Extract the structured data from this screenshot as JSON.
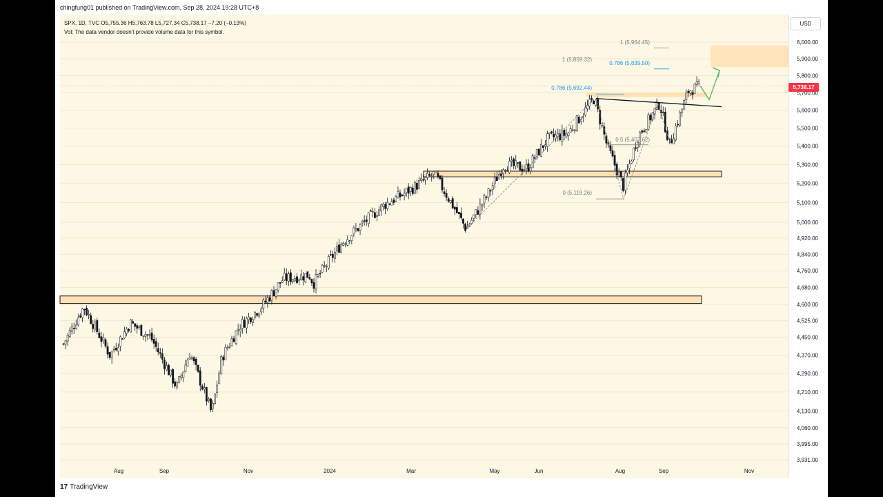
{
  "header": {
    "published": "chingfung01 published on TradingView.com, Sep 28, 2024 19:28 UTC+8"
  },
  "legend": {
    "line1": "SPX, 1D, TVC  O5,755.36  H5,763.78  L5,727.34  C5,738.17  −7.20 (−0.13%)",
    "line2": "Vol: The data vendor doesn't provide volume data for this symbol."
  },
  "scale": {
    "currency_button": "USD",
    "last_price": "5,738.17"
  },
  "footer": {
    "logo": "17",
    "brand": "TradingView"
  },
  "colors": {
    "up": "#089981",
    "down": "#f23645",
    "zone_fill": "#ffe0b2",
    "fib_blue": "#2196f3",
    "arrow": "#66bb6a",
    "background": "#fdf8e4"
  },
  "chart_data": {
    "type": "candlestick",
    "symbol": "SPX",
    "timeframe": "1D",
    "ylim": [
      3931,
      6100
    ],
    "y_scale": "log",
    "y_ticks": [
      6000,
      5900,
      5800,
      5700,
      5600,
      5500,
      5400,
      5300,
      5200,
      5100,
      5000,
      4920,
      4840,
      4760,
      4680,
      4600,
      4525,
      4450,
      4370,
      4290,
      4210,
      4130,
      4060,
      3995,
      3931
    ],
    "y_tick_labels": [
      "6,000.00",
      "5,900.00",
      "5,800.00",
      "5,700.00",
      "5,600.00",
      "5,500.00",
      "5,400.00",
      "5,300.00",
      "5,200.00",
      "5,100.00",
      "5,000.00",
      "4,920.00",
      "4,840.00",
      "4,760.00",
      "4,680.00",
      "4,600.00",
      "4,525.00",
      "4,450.00",
      "4,370.00",
      "4,290.00",
      "4,210.00",
      "4,130.00",
      "4,060.00",
      "3,995.00",
      "3,931.00"
    ],
    "x_labels": [
      "Aug",
      "Sep",
      "Nov",
      "2024",
      "Mar",
      "May",
      "Jun",
      "Aug",
      "Sep",
      "Nov"
    ],
    "close_path": [
      {
        "date": "2023-07-17",
        "close": 4420
      },
      {
        "date": "2023-07-31",
        "close": 4590
      },
      {
        "date": "2023-08-18",
        "close": 4370
      },
      {
        "date": "2023-09-01",
        "close": 4515
      },
      {
        "date": "2023-09-15",
        "close": 4450
      },
      {
        "date": "2023-10-03",
        "close": 4230
      },
      {
        "date": "2023-10-12",
        "close": 4380
      },
      {
        "date": "2023-10-27",
        "close": 4120
      },
      {
        "date": "2023-11-03",
        "close": 4360
      },
      {
        "date": "2023-11-15",
        "close": 4500
      },
      {
        "date": "2023-12-01",
        "close": 4595
      },
      {
        "date": "2023-12-15",
        "close": 4720
      },
      {
        "date": "2024-01-02",
        "close": 4740
      },
      {
        "date": "2024-01-05",
        "close": 4700
      },
      {
        "date": "2024-01-25",
        "close": 4900
      },
      {
        "date": "2024-02-12",
        "close": 5020
      },
      {
        "date": "2024-02-23",
        "close": 5090
      },
      {
        "date": "2024-03-08",
        "close": 5150
      },
      {
        "date": "2024-03-28",
        "close": 5250
      },
      {
        "date": "2024-04-19",
        "close": 4967
      },
      {
        "date": "2024-05-03",
        "close": 5130
      },
      {
        "date": "2024-05-15",
        "close": 5300
      },
      {
        "date": "2024-05-31",
        "close": 5280
      },
      {
        "date": "2024-06-14",
        "close": 5440
      },
      {
        "date": "2024-06-28",
        "close": 5470
      },
      {
        "date": "2024-07-16",
        "close": 5667
      },
      {
        "date": "2024-07-25",
        "close": 5400
      },
      {
        "date": "2024-08-05",
        "close": 5186
      },
      {
        "date": "2024-08-15",
        "close": 5450
      },
      {
        "date": "2024-08-30",
        "close": 5640
      },
      {
        "date": "2024-09-06",
        "close": 5408
      },
      {
        "date": "2024-09-19",
        "close": 5713
      },
      {
        "date": "2024-09-27",
        "close": 5738
      }
    ],
    "last_candle": {
      "open": 5755.36,
      "high": 5763.78,
      "low": 5727.34,
      "close": 5738.17,
      "change": -7.2,
      "change_pct": -0.13
    },
    "horizontal_zones": [
      {
        "name": "support-zone-4600",
        "low": 4605,
        "high": 4640
      },
      {
        "name": "support-zone-5250",
        "low": 5235,
        "high": 5265
      },
      {
        "name": "target-zone-5900",
        "low": 5850,
        "high": 5980
      }
    ],
    "trendline": {
      "from_price": 5667,
      "to_price": 5620
    },
    "fib_levels": [
      {
        "label": "1 (5,964.45)",
        "value": 5964.45
      },
      {
        "label": "0.786 (5,839.50)",
        "value": 5839.5
      },
      {
        "label": "1 (5,859.32)",
        "value": 5859.32
      },
      {
        "label": "0.786 (5,692.44)",
        "value": 5692.44
      },
      {
        "label": "0.5 (5,407.62)",
        "value": 5407.62
      },
      {
        "label": "0 (5,119.26)",
        "value": 5119.26
      }
    ],
    "projection_arrow": {
      "from": 5740,
      "via": 5660,
      "to": 5830
    }
  }
}
